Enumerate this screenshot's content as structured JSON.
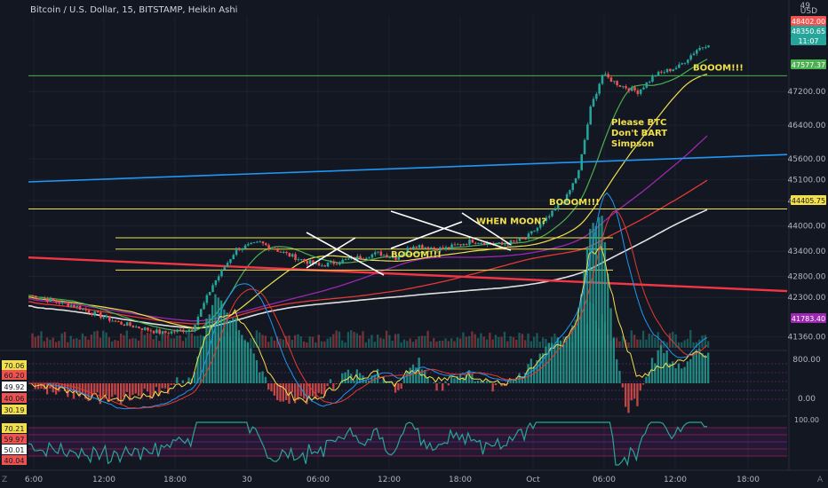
{
  "header": {
    "symbol_title": "Bitcoin / U.S. Dollar, 15, BITSTAMP, Heikin Ashi",
    "currency": "USD",
    "corner_label": "49",
    "corner_bottom_left": "Z",
    "corner_bottom_right": "A"
  },
  "colors": {
    "background": "#131722",
    "bull": "#26a69a",
    "bear": "#ef5350",
    "yellow": "#f1e04b",
    "green_ma": "#4caf50",
    "purple_ma": "#9c27b0",
    "red_ma": "#e53935",
    "white_ma": "#e0e0e0",
    "blue_line": "#2196f3",
    "pink_line": "#f23645"
  },
  "chart_data": [
    {
      "type": "candlestick",
      "name": "price",
      "ylim": [
        41100,
        49000
      ],
      "y_ticks": [
        41360,
        42300,
        42800,
        43400,
        44000,
        44600,
        45100,
        45600,
        46400,
        47200
      ],
      "x_ticks": [
        "6:00",
        "12:00",
        "18:00",
        "30",
        "06:00",
        "12:00",
        "18:00",
        "Oct",
        "06:00",
        "12:00",
        "18:00"
      ],
      "price_labels": [
        {
          "value": "48402.00",
          "color": "#ef5350"
        },
        {
          "value": "48350.65",
          "color": "#26a69a"
        },
        {
          "value": "11:07",
          "color": "#26a69a"
        },
        {
          "value": "47577.37",
          "color": "#4caf50"
        },
        {
          "value": "44405.75",
          "color": "#f1e04b"
        },
        {
          "value": "41783.40",
          "color": "#9c27b0"
        }
      ],
      "annotations": [
        {
          "text": "BOOOM!!!",
          "color": "#f1e04b",
          "at_price": 47700
        },
        {
          "text": "Please BTC",
          "color": "#f1e04b",
          "at_price": 46400
        },
        {
          "text": "Don't BART",
          "color": "#f1e04b",
          "at_price": 46150
        },
        {
          "text": "Simpson",
          "color": "#f1e04b",
          "at_price": 45900
        },
        {
          "text": "BOOOM!!!",
          "color": "#f1e04b",
          "at_price": 44500
        },
        {
          "text": "WHEN MOON?",
          "color": "#f1e04b",
          "at_price": 44050
        },
        {
          "text": "BOOOM!!!",
          "color": "#f1e04b",
          "at_price": 43250
        }
      ],
      "horizontal_levels": [
        47577,
        44405,
        43720,
        43450,
        42950
      ]
    },
    {
      "type": "line",
      "name": "oscillator-1",
      "left_labels": [
        {
          "value": "70.06",
          "bg": "#f1e04b"
        },
        {
          "value": "60.20",
          "bg": "#ef5350"
        },
        {
          "value": "49.92",
          "bg": "#ffffff"
        },
        {
          "value": "40.06",
          "bg": "#ef5350"
        },
        {
          "value": "30.19",
          "bg": "#f1e04b"
        }
      ],
      "right_ticks": [
        "800.00",
        "0.00"
      ]
    },
    {
      "type": "line",
      "name": "oscillator-2",
      "left_labels": [
        {
          "value": "70.21",
          "bg": "#f1e04b"
        },
        {
          "value": "59.97",
          "bg": "#ef5350"
        },
        {
          "value": "50.01",
          "bg": "#ffffff"
        },
        {
          "value": "40.04",
          "bg": "#ef5350"
        }
      ],
      "right_ticks": [
        "100.00"
      ]
    }
  ]
}
